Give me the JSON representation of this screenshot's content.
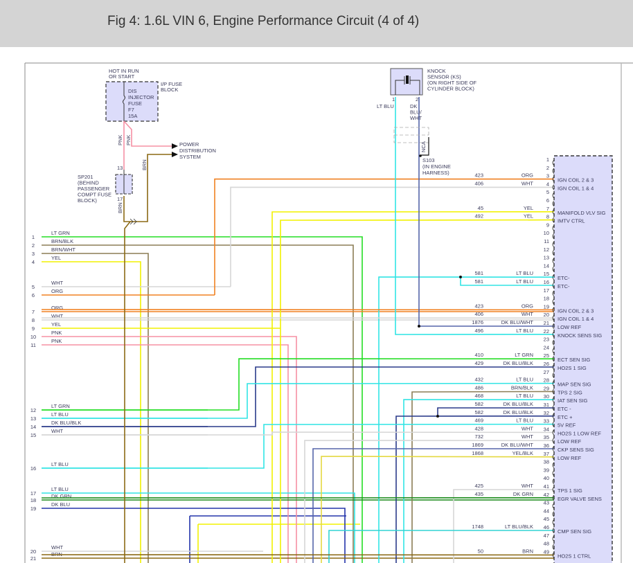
{
  "title": "Fig 4: 1.6L VIN 6, Engine Performance Circuit (4 of 4)",
  "fuse_block": {
    "hot_label": [
      "HOT IN RUN",
      "OR START"
    ],
    "block_label": [
      "I/P FUSE",
      "BLOCK"
    ],
    "fuse_label": [
      "DIS",
      "INJECTOR",
      "FUSE",
      "F7",
      "15A"
    ],
    "wire_labels": [
      "PNK",
      "PNK"
    ]
  },
  "power_distribution": [
    "POWER",
    "DISTRIBUTION",
    "SYSTEM"
  ],
  "brn_label": "BRN",
  "splice_sp201": {
    "label": [
      "SP201",
      "(BEHIND",
      "PASSENGER",
      "COMPT FUSE",
      "BLOCK)"
    ],
    "pin_top": "13",
    "pin_bottom": "17",
    "wire_label": "BRN"
  },
  "knock_sensor": {
    "label": [
      "KNOCK",
      "SENSOR (KS)",
      "(ON RIGHT SIDE OF",
      "CYLINDER BLOCK)"
    ],
    "pin1": "1",
    "pin2": "2",
    "pin1_color": [
      "LT BLU"
    ],
    "pin2_color": [
      "DK",
      "BLU/",
      "WHT"
    ],
    "nca": "NCA",
    "splice_label": [
      "S103",
      "(IN ENGINE",
      "HARNESS)"
    ]
  },
  "wire_colors": {
    "LT GRN": "#22dd22",
    "BRN/BLK": "#8b7d55",
    "BRN/WHT": "#8b7d55",
    "YEL": "#f2f200",
    "WHT": "#d6d6d6",
    "ORG": "#f08020",
    "PNK": "#f590a4",
    "LT BLU": "#30e4e4",
    "DK BLU/BLK": "#2a3a8a",
    "DK GRN": "#1a8a1a",
    "DK BLU": "#2233aa",
    "BRN": "#8b6914",
    "DK BLU/WHT": "#5565aa",
    "YEL/BLK": "#e4d840",
    "LT BLU/BLK": "#30d4d4"
  },
  "left_pins": [
    {
      "pin": "1",
      "color": "LT GRN"
    },
    {
      "pin": "2",
      "color": "BRN/BLK"
    },
    {
      "pin": "3",
      "color": "BRN/WHT"
    },
    {
      "pin": "4",
      "color": "YEL"
    },
    {
      "pin": "5",
      "color": "WHT"
    },
    {
      "pin": "6",
      "color": "ORG"
    },
    {
      "pin": "7",
      "color": "ORG"
    },
    {
      "pin": "8",
      "color": "WHT"
    },
    {
      "pin": "9",
      "color": "YEL"
    },
    {
      "pin": "10",
      "color": "PNK"
    },
    {
      "pin": "11",
      "color": "PNK"
    },
    {
      "pin": "12",
      "color": "LT GRN"
    },
    {
      "pin": "13",
      "color": "LT BLU"
    },
    {
      "pin": "14",
      "color": "DK BLU/BLK"
    },
    {
      "pin": "15",
      "color": "WHT"
    },
    {
      "pin": "16",
      "color": "LT BLU"
    },
    {
      "pin": "17",
      "color": "LT BLU"
    },
    {
      "pin": "18",
      "color": "DK GRN"
    },
    {
      "pin": "19",
      "color": "DK BLU"
    },
    {
      "pin": "20",
      "color": "WHT"
    },
    {
      "pin": "21",
      "color": "BRN"
    }
  ],
  "right_pins": [
    {
      "pin": "1",
      "circuit": "",
      "color": "",
      "function": ""
    },
    {
      "pin": "2",
      "circuit": "",
      "color": "",
      "function": ""
    },
    {
      "pin": "3",
      "circuit": "423",
      "color": "ORG",
      "function": "IGN COIL 2 & 3"
    },
    {
      "pin": "4",
      "circuit": "406",
      "color": "WHT",
      "function": "IGN COIL 1 & 4"
    },
    {
      "pin": "5",
      "circuit": "",
      "color": "",
      "function": ""
    },
    {
      "pin": "6",
      "circuit": "",
      "color": "",
      "function": ""
    },
    {
      "pin": "7",
      "circuit": "45",
      "color": "YEL",
      "function": "MANIFOLD VLV SIG"
    },
    {
      "pin": "8",
      "circuit": "492",
      "color": "YEL",
      "function": "IMTV CTRL"
    },
    {
      "pin": "9",
      "circuit": "",
      "color": "",
      "function": ""
    },
    {
      "pin": "10",
      "circuit": "",
      "color": "",
      "function": ""
    },
    {
      "pin": "11",
      "circuit": "",
      "color": "",
      "function": ""
    },
    {
      "pin": "12",
      "circuit": "",
      "color": "",
      "function": ""
    },
    {
      "pin": "13",
      "circuit": "",
      "color": "",
      "function": ""
    },
    {
      "pin": "14",
      "circuit": "",
      "color": "",
      "function": ""
    },
    {
      "pin": "15",
      "circuit": "581",
      "color": "LT BLU",
      "function": "ETC-"
    },
    {
      "pin": "16",
      "circuit": "581",
      "color": "LT BLU",
      "function": "ETC-"
    },
    {
      "pin": "17",
      "circuit": "",
      "color": "",
      "function": ""
    },
    {
      "pin": "18",
      "circuit": "",
      "color": "",
      "function": ""
    },
    {
      "pin": "19",
      "circuit": "423",
      "color": "ORG",
      "function": "IGN COIL 2 & 3"
    },
    {
      "pin": "20",
      "circuit": "406",
      "color": "WHT",
      "function": "IGN COIL 1 & 4"
    },
    {
      "pin": "21",
      "circuit": "1876",
      "color": "DK BLU/WHT",
      "function": "LOW REF"
    },
    {
      "pin": "22",
      "circuit": "496",
      "color": "LT BLU",
      "function": "KNOCK SENS SIG"
    },
    {
      "pin": "23",
      "circuit": "",
      "color": "",
      "function": ""
    },
    {
      "pin": "24",
      "circuit": "",
      "color": "",
      "function": ""
    },
    {
      "pin": "25",
      "circuit": "410",
      "color": "LT GRN",
      "function": "ECT SEN SIG"
    },
    {
      "pin": "26",
      "circuit": "429",
      "color": "DK BLU/BLK",
      "function": "HO2S 1 SIG"
    },
    {
      "pin": "27",
      "circuit": "",
      "color": "",
      "function": ""
    },
    {
      "pin": "28",
      "circuit": "432",
      "color": "LT BLU",
      "function": "MAP SEN SIG"
    },
    {
      "pin": "29",
      "circuit": "486",
      "color": "BRN/BLK",
      "function": "TPS 2 SIG"
    },
    {
      "pin": "30",
      "circuit": "468",
      "color": "LT BLU",
      "function": "IAT SEN SIG"
    },
    {
      "pin": "31",
      "circuit": "582",
      "color": "DK BLU/BLK",
      "function": "ETC -"
    },
    {
      "pin": "32",
      "circuit": "582",
      "color": "DK BLU/BLK",
      "function": "ETC +"
    },
    {
      "pin": "33",
      "circuit": "469",
      "color": "LT BLU",
      "function": "5V REF"
    },
    {
      "pin": "34",
      "circuit": "428",
      "color": "WHT",
      "function": "HO2S 1 LOW REF"
    },
    {
      "pin": "35",
      "circuit": "732",
      "color": "WHT",
      "function": "LOW REF"
    },
    {
      "pin": "36",
      "circuit": "1869",
      "color": "DK BLU/WHT",
      "function": "CKP SENS SIG"
    },
    {
      "pin": "37",
      "circuit": "1868",
      "color": "YEL/BLK",
      "function": "LOW REF"
    },
    {
      "pin": "38",
      "circuit": "",
      "color": "",
      "function": ""
    },
    {
      "pin": "39",
      "circuit": "",
      "color": "",
      "function": ""
    },
    {
      "pin": "40",
      "circuit": "",
      "color": "",
      "function": ""
    },
    {
      "pin": "41",
      "circuit": "425",
      "color": "WHT",
      "function": "TPS 1 SIG"
    },
    {
      "pin": "42",
      "circuit": "435",
      "color": "DK GRN",
      "function": "EGR VALVE SENS"
    },
    {
      "pin": "43",
      "circuit": "",
      "color": "",
      "function": ""
    },
    {
      "pin": "44",
      "circuit": "",
      "color": "",
      "function": ""
    },
    {
      "pin": "45",
      "circuit": "",
      "color": "",
      "function": ""
    },
    {
      "pin": "46",
      "circuit": "1748",
      "color": "LT BLU/BLK",
      "function": "CMP SEN SIG"
    },
    {
      "pin": "47",
      "circuit": "",
      "color": "",
      "function": ""
    },
    {
      "pin": "48",
      "circuit": "",
      "color": "",
      "function": ""
    },
    {
      "pin": "49",
      "circuit": "50",
      "color": "BRN",
      "function": "HO2S 1 CTRL"
    }
  ]
}
